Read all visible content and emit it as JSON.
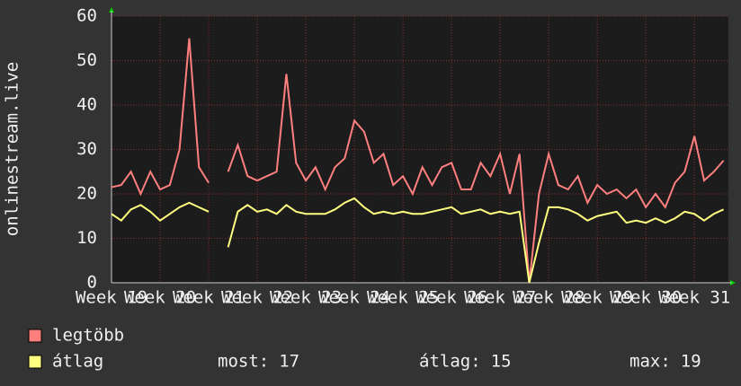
{
  "chart_data": {
    "type": "line",
    "ylabel": "onlinestream.live",
    "x": [
      19,
      19.2,
      19.4,
      19.6,
      19.8,
      20,
      20.2,
      20.4,
      20.6,
      20.8,
      21,
      21.2,
      21.4,
      21.6,
      21.8,
      22,
      22.2,
      22.4,
      22.6,
      22.8,
      23,
      23.2,
      23.4,
      23.6,
      23.8,
      24,
      24.2,
      24.4,
      24.6,
      24.8,
      25,
      25.2,
      25.4,
      25.6,
      25.8,
      26,
      26.2,
      26.4,
      26.6,
      26.8,
      27,
      27.2,
      27.4,
      27.6,
      27.8,
      28,
      28.2,
      28.4,
      28.6,
      28.8,
      29,
      29.2,
      29.4,
      29.6,
      29.8,
      30,
      30.2,
      30.4,
      30.6,
      30.8,
      31,
      31.2,
      31.4,
      31.6
    ],
    "series": [
      {
        "name": "legtöbb",
        "color": "#ff7f7f",
        "values": [
          21.5,
          22,
          25,
          20,
          25,
          21,
          22,
          30,
          55,
          26,
          22.5,
          null,
          25,
          31,
          24,
          23,
          24,
          25,
          47,
          27,
          23,
          26,
          21,
          26,
          28,
          36.5,
          34,
          27,
          29,
          22,
          24,
          20,
          26,
          22,
          26,
          27,
          21,
          21,
          27,
          24,
          29,
          20,
          29,
          0,
          20,
          29,
          22,
          21,
          24,
          18,
          22,
          20,
          21,
          19,
          21,
          17,
          20,
          17,
          22.5,
          25,
          33,
          23,
          25,
          27.5
        ]
      },
      {
        "name": "átlag",
        "color": "#ffff80",
        "values": [
          15.5,
          14,
          16.5,
          17.5,
          16,
          14,
          15.5,
          17,
          18,
          17,
          16,
          null,
          8,
          16,
          17.5,
          16,
          16.5,
          15.5,
          17.5,
          16,
          15.5,
          15.5,
          15.5,
          16.5,
          18,
          19,
          17,
          15.5,
          16,
          15.5,
          16,
          15.5,
          15.5,
          16,
          16.5,
          17,
          15.5,
          16,
          16.5,
          15.5,
          16,
          15.5,
          16,
          0,
          9,
          17,
          17,
          16.5,
          15.5,
          14,
          15,
          15.5,
          16,
          13.5,
          14,
          13.5,
          14.5,
          13.5,
          14.5,
          16,
          15.5,
          14,
          15.5,
          16.5
        ]
      }
    ],
    "xlim": [
      19,
      31.7
    ],
    "xticks": [
      {
        "value": 19,
        "label": "Week 19"
      },
      {
        "value": 20,
        "label": "Week 20"
      },
      {
        "value": 21,
        "label": "Week 21"
      },
      {
        "value": 22,
        "label": "Week 22"
      },
      {
        "value": 23,
        "label": "Week 23"
      },
      {
        "value": 24,
        "label": "Week 24"
      },
      {
        "value": 25,
        "label": "Week 25"
      },
      {
        "value": 26,
        "label": "Week 26"
      },
      {
        "value": 27,
        "label": "Week 27"
      },
      {
        "value": 28,
        "label": "Week 28"
      },
      {
        "value": 29,
        "label": "Week 29"
      },
      {
        "value": 30,
        "label": "Week 30"
      },
      {
        "value": 31,
        "label": "Week 31"
      }
    ],
    "ylim": [
      0,
      60
    ],
    "yticks": [
      0,
      10,
      20,
      30,
      40,
      50,
      60
    ],
    "grid": true,
    "stats": [
      {
        "label": "most:",
        "value": 17
      },
      {
        "label": "átlag:",
        "value": 15
      },
      {
        "label": "max:",
        "value": 19
      }
    ]
  }
}
